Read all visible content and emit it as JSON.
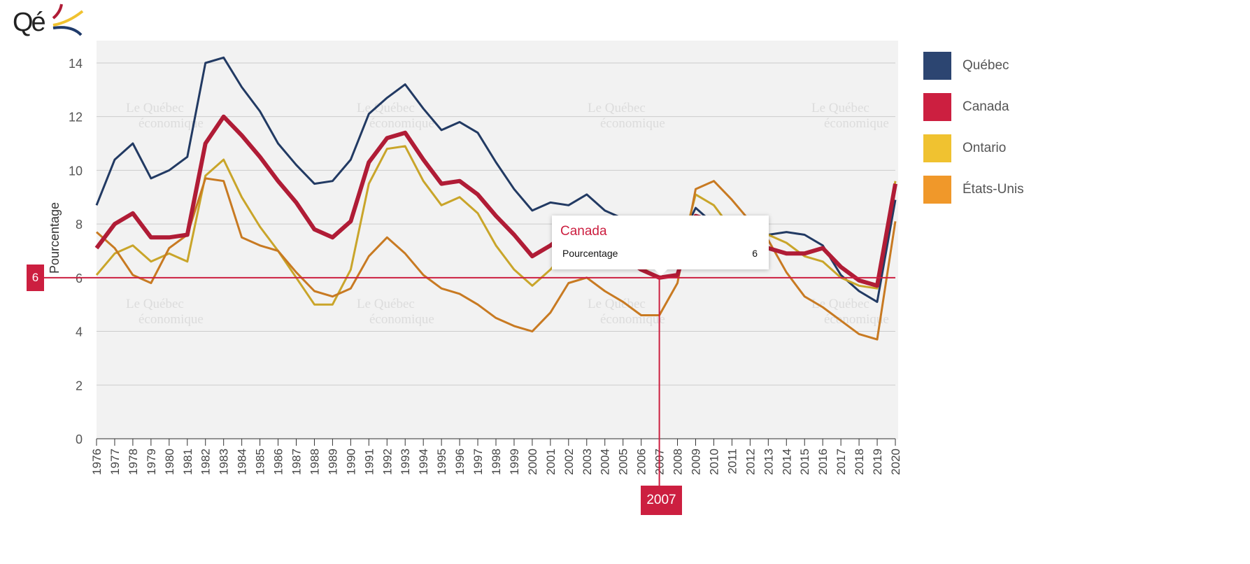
{
  "logo": {
    "text": "Qé"
  },
  "watermark": {
    "line1": "Le Québec",
    "line2": "économique"
  },
  "chart_data": {
    "type": "line",
    "title": "",
    "xlabel": "",
    "ylabel": "Pourcentage",
    "ylim": [
      0,
      14.5
    ],
    "yticks": [
      0,
      2,
      4,
      6,
      8,
      10,
      12,
      14
    ],
    "grid": true,
    "legend_position": "right",
    "x": [
      1976,
      1977,
      1978,
      1979,
      1980,
      1981,
      1982,
      1983,
      1984,
      1985,
      1986,
      1987,
      1988,
      1989,
      1990,
      1991,
      1992,
      1993,
      1994,
      1995,
      1996,
      1997,
      1998,
      1999,
      2000,
      2001,
      2002,
      2003,
      2004,
      2005,
      2006,
      2007,
      2008,
      2009,
      2010,
      2011,
      2012,
      2013,
      2014,
      2015,
      2016,
      2017,
      2018,
      2019,
      2020
    ],
    "series": [
      {
        "name": "Québec",
        "color": "#223a63",
        "legend_color": "#2c4571",
        "width": 3,
        "values": [
          8.7,
          10.4,
          11.0,
          9.7,
          10.0,
          10.5,
          14.0,
          14.2,
          13.1,
          12.2,
          11.0,
          10.2,
          9.5,
          9.6,
          10.4,
          12.1,
          12.7,
          13.2,
          12.3,
          11.5,
          11.8,
          11.4,
          10.3,
          9.3,
          8.5,
          8.8,
          8.7,
          9.1,
          8.5,
          8.2,
          8.1,
          7.2,
          7.2,
          8.6,
          8.0,
          7.8,
          7.8,
          7.6,
          7.7,
          7.6,
          7.2,
          6.1,
          5.5,
          5.1,
          8.9
        ]
      },
      {
        "name": "Ontario",
        "color": "#c9a52a",
        "legend_color": "#f0c230",
        "width": 3,
        "values": [
          6.1,
          6.9,
          7.2,
          6.6,
          6.9,
          6.6,
          9.8,
          10.4,
          9.0,
          7.9,
          7.0,
          6.0,
          5.0,
          5.0,
          6.3,
          9.5,
          10.8,
          10.9,
          9.6,
          8.7,
          9.0,
          8.4,
          7.2,
          6.3,
          5.7,
          6.3,
          7.1,
          6.9,
          6.8,
          6.6,
          6.3,
          6.4,
          6.5,
          9.1,
          8.7,
          7.8,
          7.8,
          7.6,
          7.3,
          6.8,
          6.6,
          6.0,
          5.7,
          5.6,
          9.6
        ]
      },
      {
        "name": "États-Unis",
        "color": "#c87a22",
        "legend_color": "#f0982a",
        "width": 3,
        "values": [
          7.7,
          7.1,
          6.1,
          5.8,
          7.1,
          7.6,
          9.7,
          9.6,
          7.5,
          7.2,
          7.0,
          6.2,
          5.5,
          5.3,
          5.6,
          6.8,
          7.5,
          6.9,
          6.1,
          5.6,
          5.4,
          5.0,
          4.5,
          4.2,
          4.0,
          4.7,
          5.8,
          6.0,
          5.5,
          5.1,
          4.6,
          4.6,
          5.8,
          9.3,
          9.6,
          8.9,
          8.1,
          7.4,
          6.2,
          5.3,
          4.9,
          4.4,
          3.9,
          3.7,
          8.1
        ]
      },
      {
        "name": "Canada",
        "color": "#b01c36",
        "legend_color": "#cc1f40",
        "width": 6,
        "values": [
          7.1,
          8.0,
          8.4,
          7.5,
          7.5,
          7.6,
          11.0,
          12.0,
          11.3,
          10.5,
          9.6,
          8.8,
          7.8,
          7.5,
          8.1,
          10.3,
          11.2,
          11.4,
          10.4,
          9.5,
          9.6,
          9.1,
          8.3,
          7.6,
          6.8,
          7.2,
          7.7,
          7.6,
          7.2,
          6.8,
          6.3,
          6.0,
          6.1,
          8.3,
          8.1,
          7.5,
          7.3,
          7.1,
          6.9,
          6.9,
          7.1,
          6.4,
          5.9,
          5.7,
          9.5
        ]
      }
    ],
    "legend_order": [
      "Québec",
      "Canada",
      "Ontario",
      "États-Unis"
    ],
    "hover": {
      "series": "Canada",
      "x_label": "2007",
      "y_label": "6",
      "metric": "Pourcentage",
      "value": "6"
    }
  },
  "legend": [
    {
      "label": "Québec",
      "color": "#2c4571"
    },
    {
      "label": "Canada",
      "color": "#cc1f40"
    },
    {
      "label": "Ontario",
      "color": "#f0c230"
    },
    {
      "label": "États-Unis",
      "color": "#f0982a"
    }
  ]
}
